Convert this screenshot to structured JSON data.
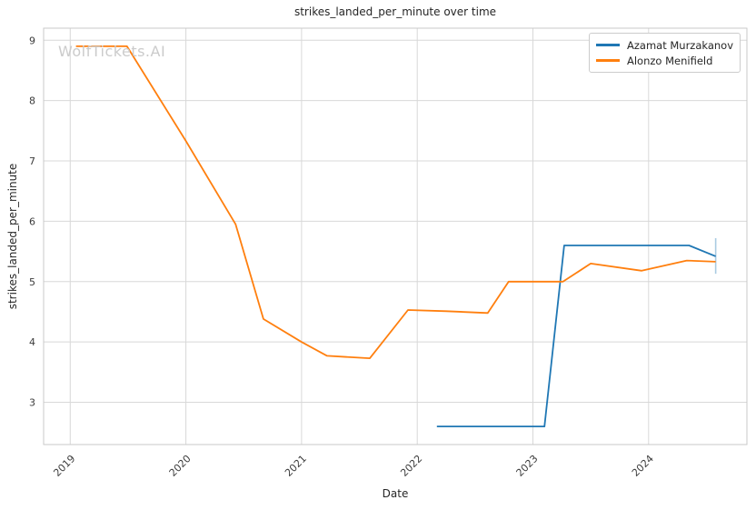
{
  "watermark": {
    "text": "WolfTickets.AI",
    "color": "#cbcbcb"
  },
  "colors": {
    "grid": "#d8d8d8",
    "frame": "#c9c9c9",
    "title_text": "#262626",
    "tick_text": "#3b3b3b",
    "background": "#ffffff"
  },
  "chart_data": {
    "type": "line",
    "title": "strikes_landed_per_minute over time",
    "xlabel": "Date",
    "ylabel": "strikes_landed_per_minute",
    "xlim": [
      2018.77,
      2024.85
    ],
    "ylim": [
      2.3,
      9.2
    ],
    "x_ticks": [
      2019,
      2020,
      2021,
      2022,
      2023,
      2024
    ],
    "y_ticks": [
      3,
      4,
      5,
      6,
      7,
      8,
      9
    ],
    "grid": true,
    "legend_position": "upper right",
    "series": [
      {
        "name": "Azamat Murzakanov",
        "color": "#1f77b4",
        "x": [
          2022.17,
          2023.1,
          2023.27,
          2024.35,
          2024.58
        ],
        "y": [
          2.6,
          2.6,
          5.6,
          5.6,
          5.42
        ]
      },
      {
        "name": "Alonzo Menifield",
        "color": "#ff7f0e",
        "x": [
          2019.05,
          2019.49,
          2020.0,
          2020.43,
          2020.67,
          2021.0,
          2021.22,
          2021.59,
          2021.92,
          2022.25,
          2022.61,
          2022.79,
          2023.26,
          2023.5,
          2023.94,
          2024.33,
          2024.58
        ],
        "y": [
          8.9,
          8.9,
          7.33,
          5.95,
          4.38,
          4.0,
          3.77,
          3.73,
          4.53,
          4.51,
          4.48,
          5.0,
          5.0,
          5.3,
          5.18,
          5.35,
          5.33
        ]
      }
    ],
    "error_bar": {
      "series": "Azamat Murzakanov",
      "x": 2024.58,
      "y_low": 5.13,
      "y_high": 5.72,
      "color": "rgba(31,119,180,0.38)"
    }
  }
}
